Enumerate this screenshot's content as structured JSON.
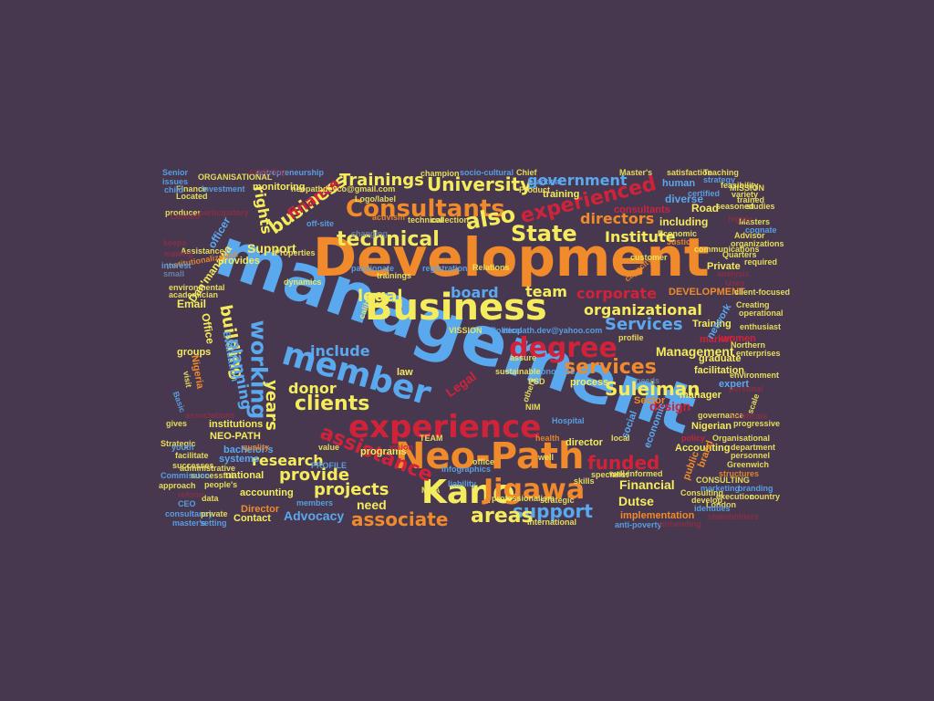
{
  "palette": {
    "background": "#473850",
    "blue": "#5aa8ee",
    "orange": "#f08a2a",
    "yellow": "#f4ec5c",
    "red": "#d0233a",
    "red_dim": "#8c2f44",
    "blue_dim": "#6f86a8"
  },
  "words": [
    {
      "text": "management"
    },
    {
      "text": "Development"
    },
    {
      "text": "Business"
    },
    {
      "text": "Neo-Path"
    },
    {
      "text": "experience"
    },
    {
      "text": "member"
    },
    {
      "text": "degree"
    },
    {
      "text": "Kano"
    },
    {
      "text": "Jigawa"
    },
    {
      "text": "Consultants"
    },
    {
      "text": "technical"
    },
    {
      "text": "University"
    },
    {
      "text": "also"
    },
    {
      "text": "State"
    },
    {
      "text": "assistance"
    },
    {
      "text": "working"
    },
    {
      "text": "clients"
    },
    {
      "text": "experienced"
    },
    {
      "text": "services"
    },
    {
      "text": "support"
    },
    {
      "text": "areas"
    },
    {
      "text": "projects"
    },
    {
      "text": "associate"
    },
    {
      "text": "provide"
    },
    {
      "text": "corporate"
    },
    {
      "text": "funded"
    },
    {
      "text": "Suleiman"
    },
    {
      "text": "Services"
    },
    {
      "text": "organizational"
    },
    {
      "text": "government"
    },
    {
      "text": "Institute"
    },
    {
      "text": "directors"
    },
    {
      "text": "business"
    },
    {
      "text": "Trainings"
    },
    {
      "text": "board"
    },
    {
      "text": "legal"
    },
    {
      "text": "team"
    },
    {
      "text": "building"
    },
    {
      "text": "planning"
    },
    {
      "text": "years"
    },
    {
      "text": "research"
    },
    {
      "text": "include"
    },
    {
      "text": "donor"
    },
    {
      "text": "Advocacy"
    },
    {
      "text": "need"
    },
    {
      "text": "Financial"
    },
    {
      "text": "Dutse"
    },
    {
      "text": "Management"
    },
    {
      "text": "Support"
    },
    {
      "text": "rights"
    },
    {
      "text": "finance"
    },
    {
      "text": "Legal"
    },
    {
      "text": "design"
    },
    {
      "text": "Email"
    },
    {
      "text": "Dan'manawa"
    },
    {
      "text": "monitoring"
    },
    {
      "text": "training"
    },
    {
      "text": "human"
    },
    {
      "text": "diverse"
    },
    {
      "text": "Road"
    },
    {
      "text": "including"
    },
    {
      "text": "Private"
    },
    {
      "text": "market"
    },
    {
      "text": "facilitation"
    },
    {
      "text": "graduate"
    },
    {
      "text": "manager"
    },
    {
      "text": "expert"
    },
    {
      "text": "Nigerian"
    },
    {
      "text": "Accounting"
    },
    {
      "text": "director"
    },
    {
      "text": "implementation"
    },
    {
      "text": "programs"
    },
    {
      "text": "accounting"
    },
    {
      "text": "national"
    },
    {
      "text": "systems"
    },
    {
      "text": "institutions"
    },
    {
      "text": "NEO-PATH"
    },
    {
      "text": "bachelor's"
    },
    {
      "text": "Contact"
    },
    {
      "text": "groups"
    },
    {
      "text": "provides"
    },
    {
      "text": "officer"
    },
    {
      "text": "Office"
    },
    {
      "text": "Evaluation"
    },
    {
      "text": "Nigeria"
    },
    {
      "text": "Training"
    },
    {
      "text": "law"
    },
    {
      "text": "process"
    },
    {
      "text": "network"
    },
    {
      "text": "economic"
    },
    {
      "text": "social"
    },
    {
      "text": "public"
    },
    {
      "text": "brand"
    },
    {
      "text": "consultants"
    },
    {
      "text": "Sector"
    },
    {
      "text": "women"
    },
    {
      "text": "DEVELOPMENT"
    },
    {
      "text": "Director"
    },
    {
      "text": "environmental"
    },
    {
      "text": "academician"
    },
    {
      "text": "Finance"
    },
    {
      "text": "Investment"
    },
    {
      "text": "Located"
    },
    {
      "text": "entrepreneurship"
    },
    {
      "text": "ORGANISATIONAL"
    },
    {
      "text": "Senior"
    },
    {
      "text": "issues"
    },
    {
      "text": "child"
    },
    {
      "text": "producer"
    },
    {
      "text": "participatory"
    },
    {
      "text": "Assistance"
    },
    {
      "text": "Institutionalization"
    },
    {
      "text": "interest"
    },
    {
      "text": "small"
    },
    {
      "text": "keeps"
    },
    {
      "text": "champion"
    },
    {
      "text": "socio-cultural"
    },
    {
      "text": "Chief"
    },
    {
      "text": "Master's"
    },
    {
      "text": "satisfaction"
    },
    {
      "text": "Teaching"
    },
    {
      "text": "strategy"
    },
    {
      "text": "MISSION"
    },
    {
      "text": "variety"
    },
    {
      "text": "trained"
    },
    {
      "text": "seasoned"
    },
    {
      "text": "studies"
    },
    {
      "text": "Masters"
    },
    {
      "text": "cognate"
    },
    {
      "text": "Advisor"
    },
    {
      "text": "organizations"
    },
    {
      "text": "required"
    },
    {
      "text": "Quarters"
    },
    {
      "text": "communications"
    },
    {
      "text": "client-focused"
    },
    {
      "text": "Creating"
    },
    {
      "text": "operational"
    },
    {
      "text": "enthusiast"
    },
    {
      "text": "Northern"
    },
    {
      "text": "enterprises"
    },
    {
      "text": "environment"
    },
    {
      "text": "progressive"
    },
    {
      "text": "governance"
    },
    {
      "text": "Organisational"
    },
    {
      "text": "department"
    },
    {
      "text": "personnel"
    },
    {
      "text": "Greenwich"
    },
    {
      "text": "structures"
    },
    {
      "text": "CONSULTING"
    },
    {
      "text": "marketing"
    },
    {
      "text": "branding"
    },
    {
      "text": "execution"
    },
    {
      "text": "London"
    },
    {
      "text": "country"
    },
    {
      "text": "Consulting"
    },
    {
      "text": "develop"
    },
    {
      "text": "identities"
    },
    {
      "text": "well-informed"
    },
    {
      "text": "anti-poverty"
    },
    {
      "text": "International"
    },
    {
      "text": "strategic"
    },
    {
      "text": "professionalism"
    },
    {
      "text": "liability"
    },
    {
      "text": "neopath.dev@yahoo.com"
    },
    {
      "text": "neopathdevco@gmail.com"
    },
    {
      "text": "Logo/label"
    },
    {
      "text": "off-site"
    },
    {
      "text": "activism"
    },
    {
      "text": "technical"
    },
    {
      "text": "collection"
    },
    {
      "text": "passionate"
    },
    {
      "text": "registration"
    },
    {
      "text": "Relations"
    },
    {
      "text": "audit"
    },
    {
      "text": "Properties"
    },
    {
      "text": "VISSION"
    },
    {
      "text": "Political"
    },
    {
      "text": "profile"
    },
    {
      "text": "Economics"
    },
    {
      "text": "Hospital"
    },
    {
      "text": "TEAM"
    },
    {
      "text": "Infographics"
    },
    {
      "text": "MBA"
    },
    {
      "text": "data"
    },
    {
      "text": "CEO"
    },
    {
      "text": "consultancy"
    },
    {
      "text": "master's"
    },
    {
      "text": "setting"
    },
    {
      "text": "private"
    },
    {
      "text": "people's"
    },
    {
      "text": "successful"
    },
    {
      "text": "administrative"
    },
    {
      "text": "Commission"
    },
    {
      "text": "approach"
    },
    {
      "text": "members"
    },
    {
      "text": "PROFILE"
    },
    {
      "text": "Strategic"
    },
    {
      "text": "gives"
    },
    {
      "text": "needs"
    },
    {
      "text": "Economic"
    },
    {
      "text": "Justice"
    },
    {
      "text": "capacity"
    },
    {
      "text": "customer"
    },
    {
      "text": "Product"
    },
    {
      "text": "practical"
    },
    {
      "text": "certified"
    },
    {
      "text": "feasibility"
    },
    {
      "text": "PSD"
    },
    {
      "text": "caliber"
    },
    {
      "text": "changing"
    },
    {
      "text": "dynamics"
    },
    {
      "text": "trainings"
    },
    {
      "text": "sustainable"
    },
    {
      "text": "assure"
    },
    {
      "text": "others"
    },
    {
      "text": "NIM"
    },
    {
      "text": "well"
    },
    {
      "text": "office"
    },
    {
      "text": "skills"
    },
    {
      "text": "specialist"
    },
    {
      "text": "facilitate"
    },
    {
      "text": "successes"
    },
    {
      "text": "visit"
    },
    {
      "text": "Basic"
    },
    {
      "text": "scale"
    },
    {
      "text": "personal"
    },
    {
      "text": "Uses"
    },
    {
      "text": "highly"
    },
    {
      "text": "exploring"
    },
    {
      "text": "Limited"
    },
    {
      "text": "making"
    },
    {
      "text": "stakeholders"
    },
    {
      "text": "unbending"
    },
    {
      "text": "reform"
    },
    {
      "text": "associations"
    },
    {
      "text": "certificate"
    },
    {
      "text": "analysis"
    },
    {
      "text": "health"
    },
    {
      "text": "local"
    },
    {
      "text": "policy"
    },
    {
      "text": "youth"
    },
    {
      "text": "quality"
    },
    {
      "text": "value"
    },
    {
      "text": "vision"
    }
  ]
}
